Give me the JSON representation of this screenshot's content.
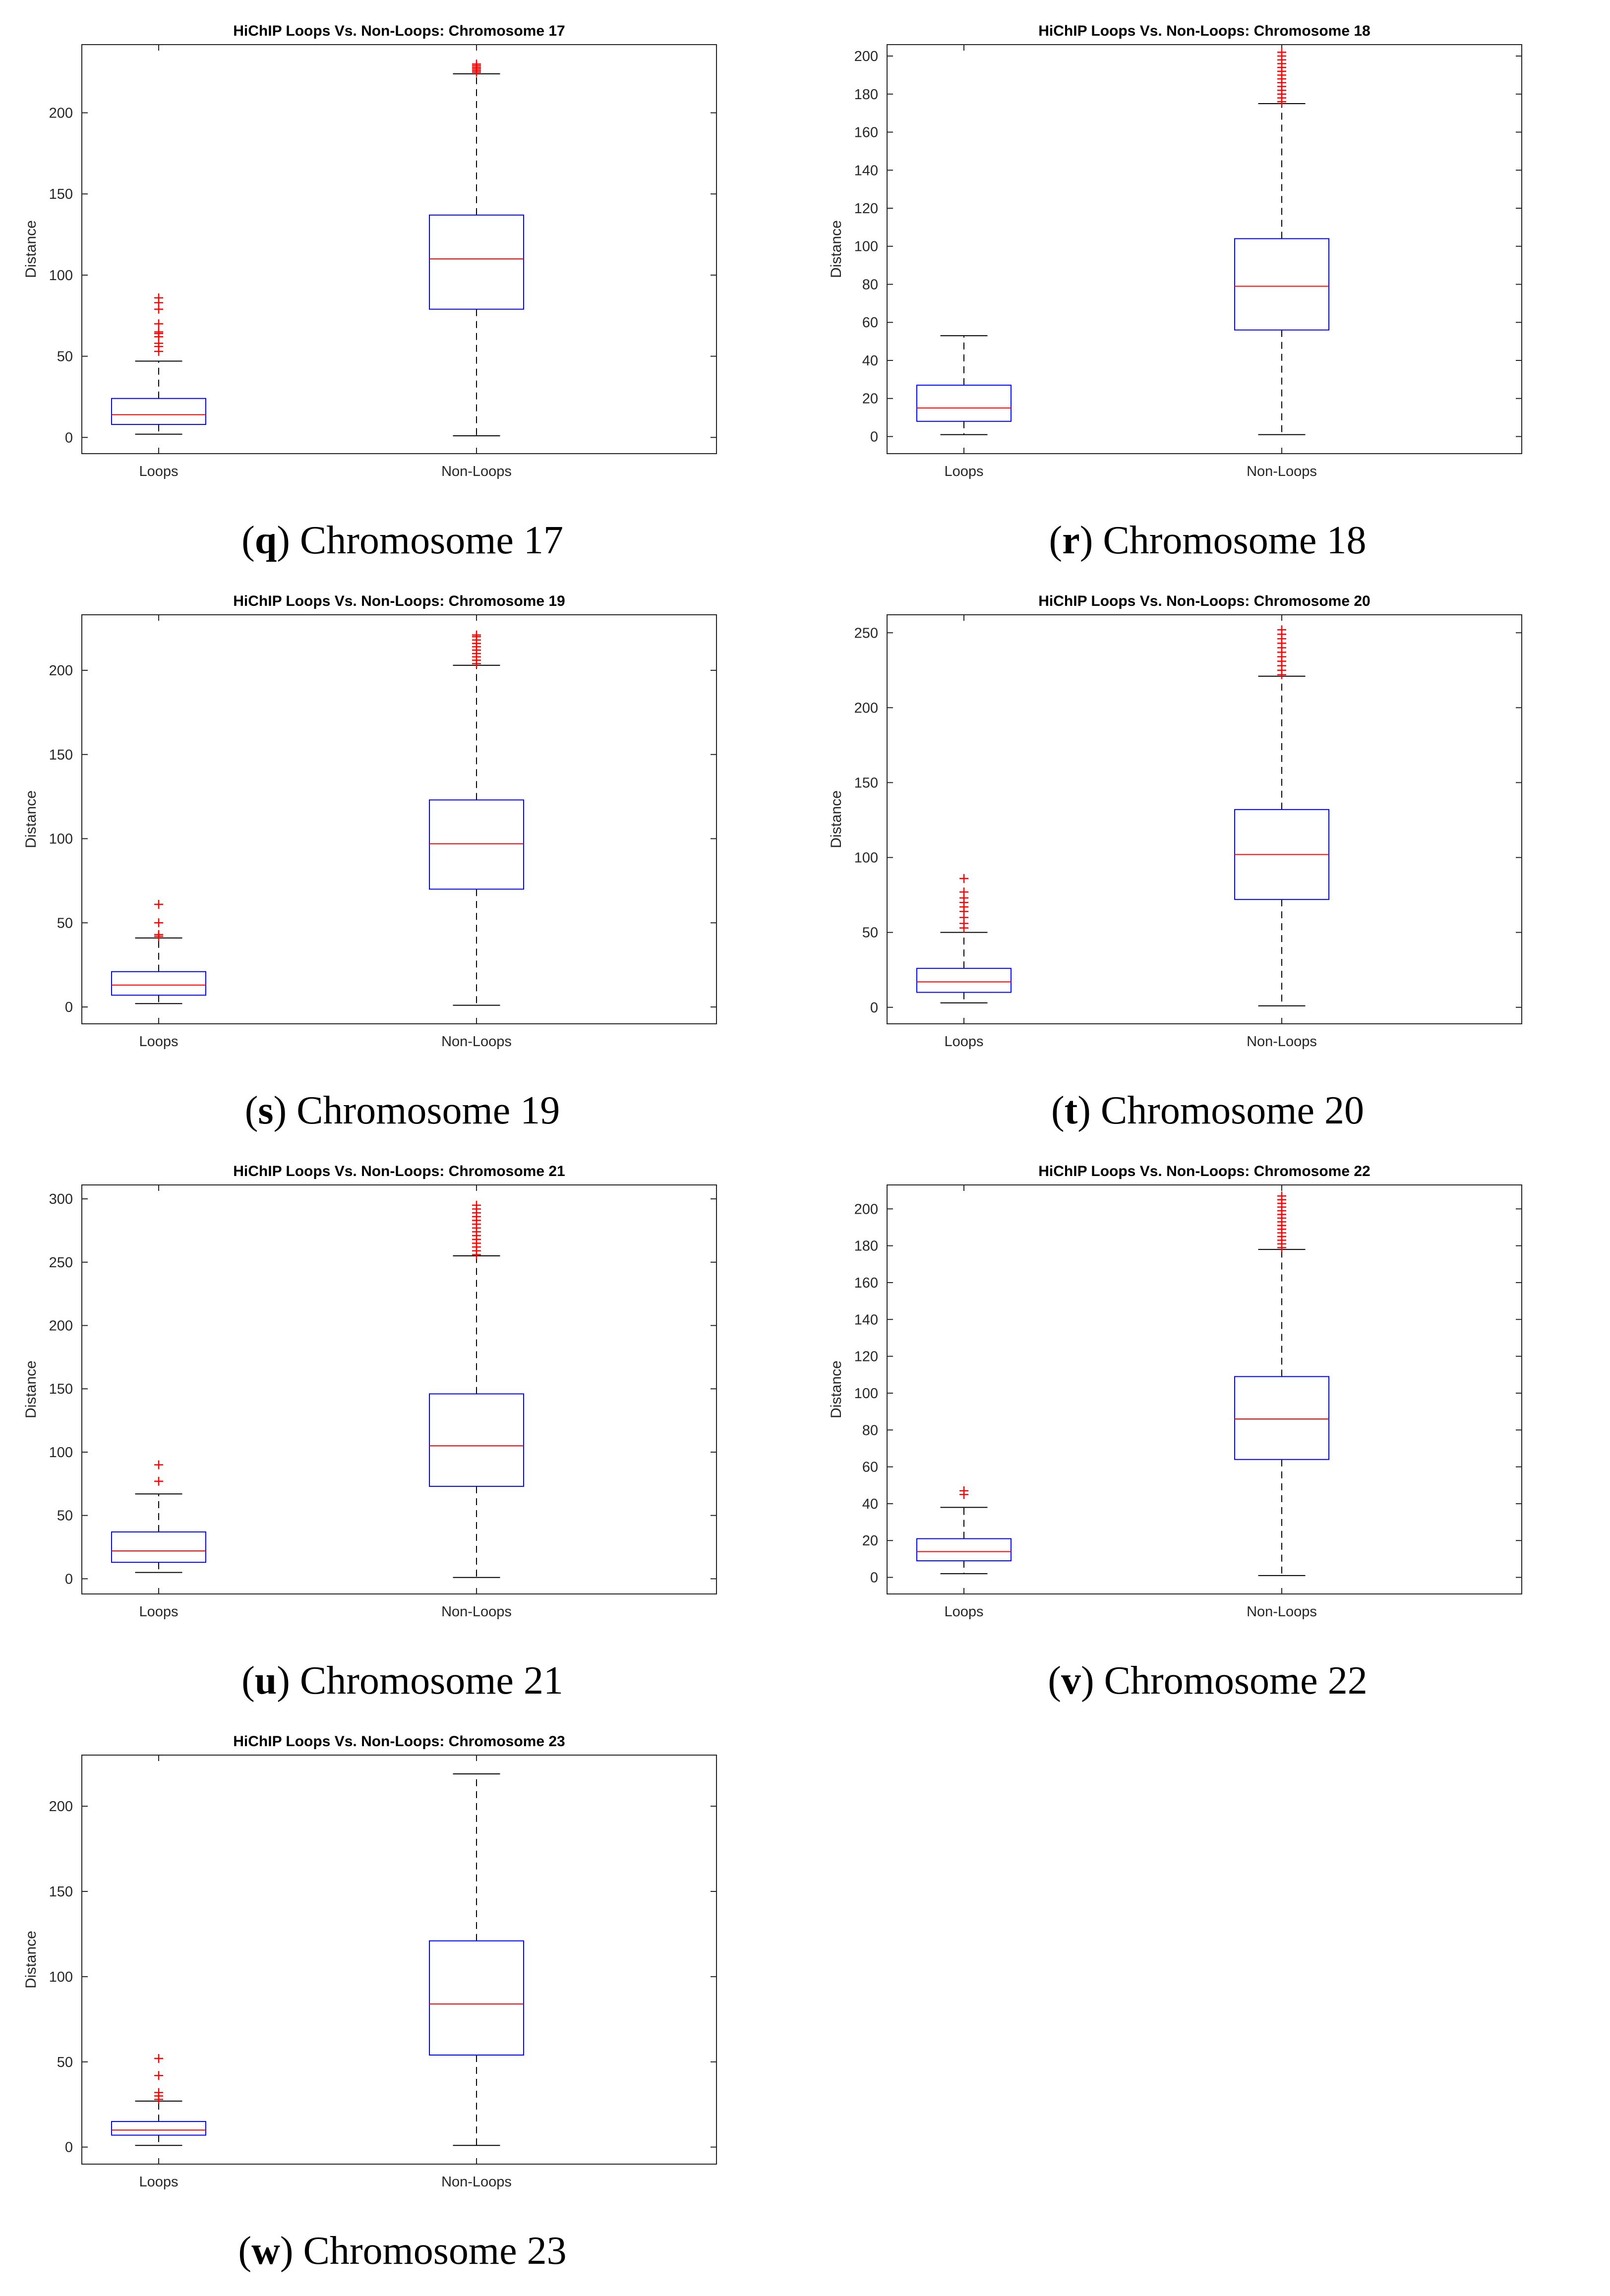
{
  "chart_data": [
    {
      "type": "box",
      "panel_letter": "q",
      "caption_text": "Chromosome 17",
      "title": "HiChIP Loops Vs. Non-Loops: Chromosome 17",
      "ylabel": "Distance",
      "categories": [
        "Loops",
        "Non-Loops"
      ],
      "ylim": [
        -10,
        242
      ],
      "yticks": [
        0,
        50,
        100,
        150,
        200
      ],
      "boxes": [
        {
          "name": "Loops",
          "whisker_low": 2,
          "q1": 8,
          "median": 14,
          "q3": 24,
          "whisker_high": 47,
          "outliers": [
            53,
            56,
            58,
            62,
            64,
            65,
            70,
            79,
            83,
            86
          ]
        },
        {
          "name": "Non-Loops",
          "whisker_low": 1,
          "q1": 79,
          "median": 110,
          "q3": 137,
          "whisker_high": 224,
          "outliers": [
            225,
            226,
            227,
            228,
            229,
            230
          ]
        }
      ]
    },
    {
      "type": "box",
      "panel_letter": "r",
      "caption_text": "Chromosome 18",
      "title": "HiChIP Loops Vs. Non-Loops: Chromosome 18",
      "ylabel": "Distance",
      "categories": [
        "Loops",
        "Non-Loops"
      ],
      "ylim": [
        -9,
        206
      ],
      "yticks": [
        0,
        20,
        40,
        60,
        80,
        100,
        120,
        140,
        160,
        180,
        200
      ],
      "boxes": [
        {
          "name": "Loops",
          "whisker_low": 1,
          "q1": 8,
          "median": 15,
          "q3": 27,
          "whisker_high": 53,
          "outliers": []
        },
        {
          "name": "Non-Loops",
          "whisker_low": 1,
          "q1": 56,
          "median": 79,
          "q3": 104,
          "whisker_high": 175,
          "outliers": [
            176,
            178,
            180,
            182,
            184,
            186,
            188,
            190,
            192,
            194,
            196,
            198,
            200,
            202
          ]
        }
      ]
    },
    {
      "type": "box",
      "panel_letter": "s",
      "caption_text": "Chromosome 19",
      "title": "HiChIP Loops Vs. Non-Loops: Chromosome 19",
      "ylabel": "Distance",
      "categories": [
        "Loops",
        "Non-Loops"
      ],
      "ylim": [
        -10,
        233
      ],
      "yticks": [
        0,
        50,
        100,
        150,
        200
      ],
      "boxes": [
        {
          "name": "Loops",
          "whisker_low": 2,
          "q1": 7,
          "median": 13,
          "q3": 21,
          "whisker_high": 41,
          "outliers": [
            42,
            43,
            50,
            61
          ]
        },
        {
          "name": "Non-Loops",
          "whisker_low": 1,
          "q1": 70,
          "median": 97,
          "q3": 123,
          "whisker_high": 203,
          "outliers": [
            204,
            206,
            208,
            210,
            212,
            214,
            216,
            218,
            220,
            221
          ]
        }
      ]
    },
    {
      "type": "box",
      "panel_letter": "t",
      "caption_text": "Chromosome 20",
      "title": "HiChIP Loops Vs. Non-Loops: Chromosome 20",
      "ylabel": "Distance",
      "categories": [
        "Loops",
        "Non-Loops"
      ],
      "ylim": [
        -11,
        262
      ],
      "yticks": [
        0,
        50,
        100,
        150,
        200,
        250
      ],
      "boxes": [
        {
          "name": "Loops",
          "whisker_low": 3,
          "q1": 10,
          "median": 17,
          "q3": 26,
          "whisker_high": 50,
          "outliers": [
            53,
            56,
            60,
            64,
            67,
            70,
            73,
            77,
            86
          ]
        },
        {
          "name": "Non-Loops",
          "whisker_low": 1,
          "q1": 72,
          "median": 102,
          "q3": 132,
          "whisker_high": 221,
          "outliers": [
            222,
            225,
            228,
            231,
            234,
            237,
            240,
            243,
            246,
            249,
            252
          ]
        }
      ]
    },
    {
      "type": "box",
      "panel_letter": "u",
      "caption_text": "Chromosome 21",
      "title": "HiChIP Loops Vs. Non-Loops: Chromosome 21",
      "ylabel": "Distance",
      "categories": [
        "Loops",
        "Non-Loops"
      ],
      "ylim": [
        -12,
        311
      ],
      "yticks": [
        0,
        50,
        100,
        150,
        200,
        250,
        300
      ],
      "boxes": [
        {
          "name": "Loops",
          "whisker_low": 5,
          "q1": 13,
          "median": 22,
          "q3": 37,
          "whisker_high": 67,
          "outliers": [
            77,
            90
          ]
        },
        {
          "name": "Non-Loops",
          "whisker_low": 1,
          "q1": 73,
          "median": 105,
          "q3": 146,
          "whisker_high": 255,
          "outliers": [
            256,
            259,
            262,
            265,
            268,
            271,
            274,
            277,
            280,
            283,
            286,
            289,
            292,
            295
          ]
        }
      ]
    },
    {
      "type": "box",
      "panel_letter": "v",
      "caption_text": "Chromosome 22",
      "title": "HiChIP Loops Vs. Non-Loops: Chromosome 22",
      "ylabel": "Distance",
      "categories": [
        "Loops",
        "Non-Loops"
      ],
      "ylim": [
        -9,
        213
      ],
      "yticks": [
        0,
        20,
        40,
        60,
        80,
        100,
        120,
        140,
        160,
        180,
        200
      ],
      "boxes": [
        {
          "name": "Loops",
          "whisker_low": 2,
          "q1": 9,
          "median": 14,
          "q3": 21,
          "whisker_high": 38,
          "outliers": [
            45,
            47
          ]
        },
        {
          "name": "Non-Loops",
          "whisker_low": 1,
          "q1": 64,
          "median": 86,
          "q3": 109,
          "whisker_high": 178,
          "outliers": [
            179,
            181,
            183,
            185,
            187,
            189,
            191,
            193,
            195,
            197,
            199,
            201,
            203,
            205,
            207
          ]
        }
      ]
    },
    {
      "type": "box",
      "panel_letter": "w",
      "caption_text": "Chromosome 23",
      "title": "HiChIP Loops Vs. Non-Loops: Chromosome 23",
      "ylabel": "Distance",
      "categories": [
        "Loops",
        "Non-Loops"
      ],
      "ylim": [
        -10,
        230
      ],
      "yticks": [
        0,
        50,
        100,
        150,
        200
      ],
      "boxes": [
        {
          "name": "Loops",
          "whisker_low": 1,
          "q1": 7,
          "median": 10,
          "q3": 15,
          "whisker_high": 27,
          "outliers": [
            28,
            30,
            32,
            42,
            52
          ]
        },
        {
          "name": "Non-Loops",
          "whisker_low": 1,
          "q1": 54,
          "median": 84,
          "q3": 121,
          "whisker_high": 219,
          "outliers": []
        }
      ]
    }
  ],
  "colors": {
    "box": "#0000ff",
    "median": "#ff0000",
    "outlier": "#ff0000",
    "whisker": "#000000",
    "axis": "#262626",
    "tick_text": "#262626"
  }
}
